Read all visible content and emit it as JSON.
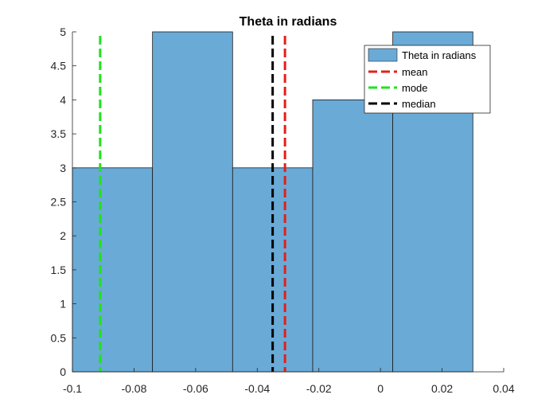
{
  "chart_data": {
    "type": "bar",
    "title": "Theta in radians",
    "xlabel": "",
    "ylabel": "",
    "xlim": [
      -0.1,
      0.04
    ],
    "ylim": [
      0,
      5
    ],
    "xticks": [
      -0.1,
      -0.08,
      -0.06,
      -0.04,
      -0.02,
      0,
      0.02,
      0.04
    ],
    "xtick_labels": [
      "-0.1",
      "-0.08",
      "-0.06",
      "-0.04",
      "-0.02",
      "0",
      "0.02",
      "0.04"
    ],
    "yticks": [
      0,
      0.5,
      1,
      1.5,
      2,
      2.5,
      3,
      3.5,
      4,
      4.5,
      5
    ],
    "ytick_labels": [
      "0",
      "0.5",
      "1",
      "1.5",
      "2",
      "2.5",
      "3",
      "3.5",
      "4",
      "4.5",
      "5"
    ],
    "bins": [
      {
        "x0": -0.1,
        "x1": -0.074,
        "count": 3
      },
      {
        "x0": -0.074,
        "x1": -0.048,
        "count": 5
      },
      {
        "x0": -0.048,
        "x1": -0.022,
        "count": 3
      },
      {
        "x0": -0.022,
        "x1": 0.004,
        "count": 4
      },
      {
        "x0": 0.004,
        "x1": 0.03,
        "count": 5
      }
    ],
    "bar_color": "#6aaad6",
    "grid": false,
    "lines": [
      {
        "name": "mean",
        "x": -0.031,
        "color": "#e0201c"
      },
      {
        "name": "mode",
        "x": -0.091,
        "color": "#22e022"
      },
      {
        "name": "median",
        "x": -0.035,
        "color": "#000000"
      }
    ],
    "legend": {
      "placement": "top-right",
      "entries": [
        "Theta in radians",
        "mean",
        "mode",
        "median"
      ]
    }
  }
}
